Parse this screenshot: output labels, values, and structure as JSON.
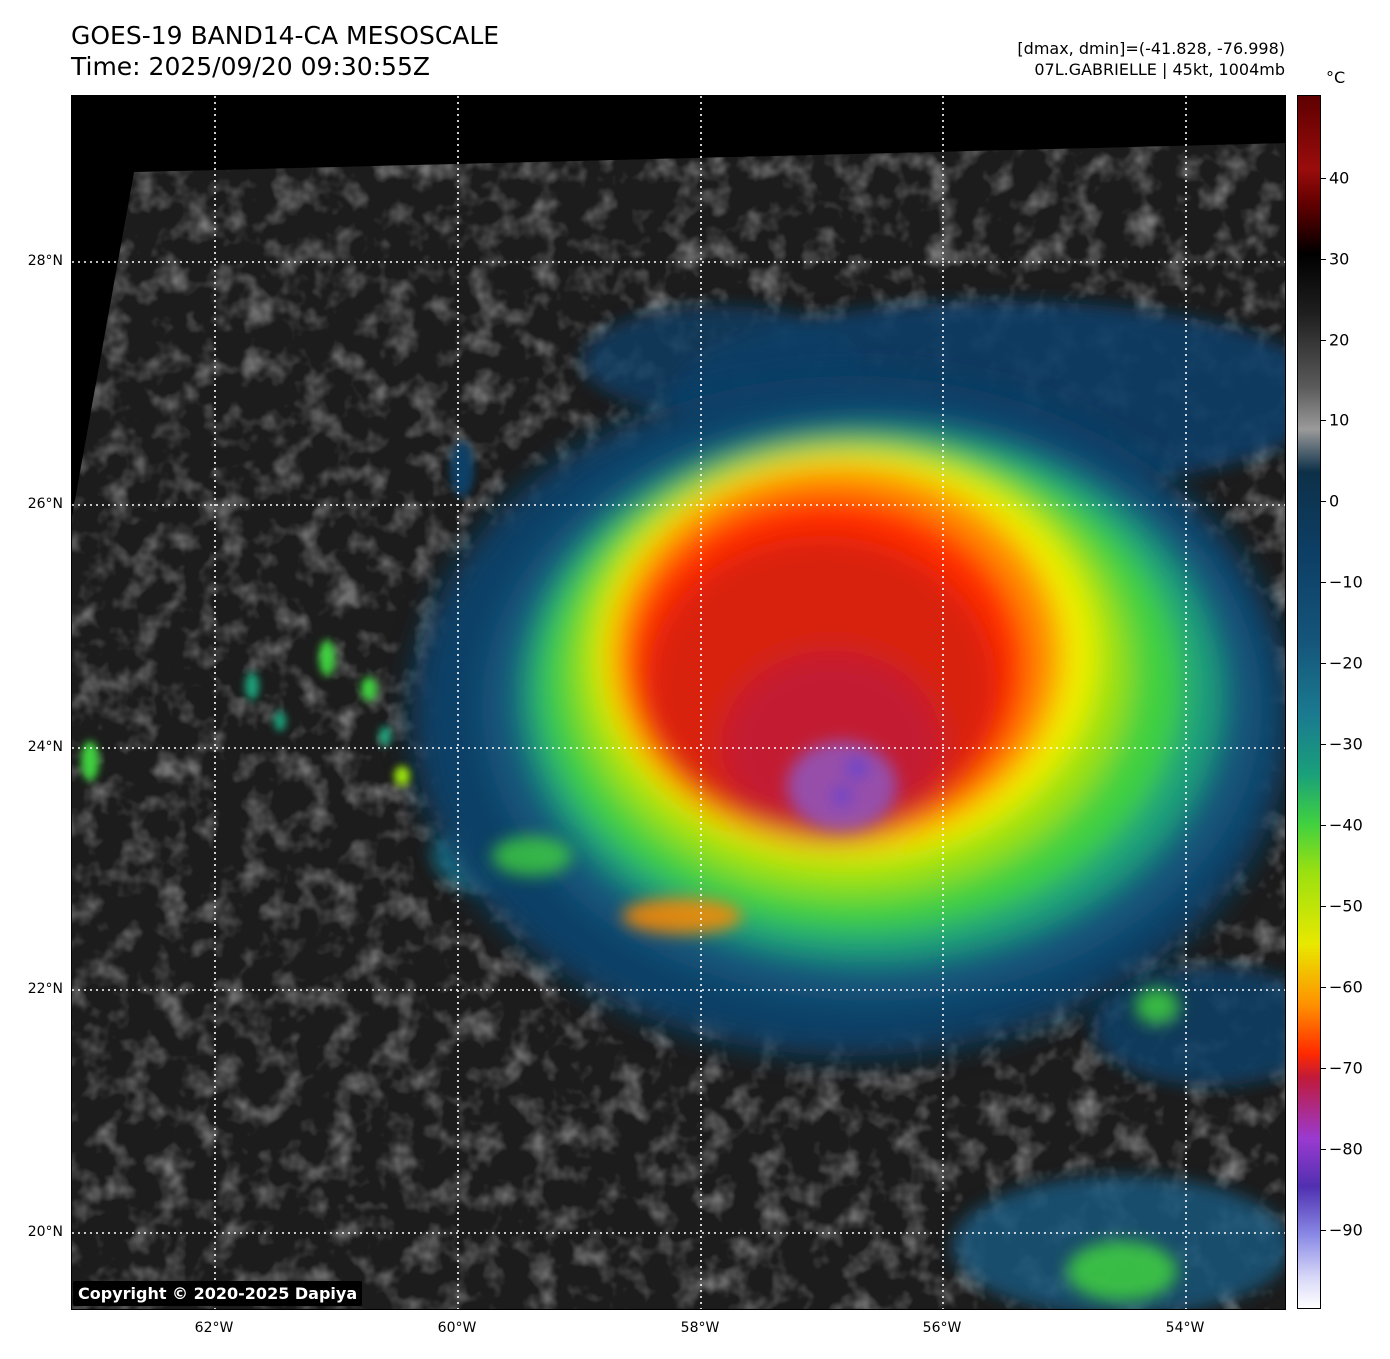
{
  "header": {
    "title": "GOES-19 BAND14-CA MESOSCALE",
    "time": "Time: 2025/09/20 09:30:55Z",
    "range_text": "[dmax, dmin]=(-41.828, -76.998)",
    "storm_text": "07L.GABRIELLE | 45kt, 1004mb"
  },
  "map": {
    "lat_labels": [
      "28°N",
      "26°N",
      "24°N",
      "22°N",
      "20°N"
    ],
    "lon_labels": [
      "62°W",
      "60°W",
      "58°W",
      "56°W",
      "54°W"
    ],
    "colors": {
      "cold_core": "#8c5ac8",
      "deep_red": "#d82010",
      "orange": "#ff8a00",
      "yellow": "#f0f000",
      "green": "#40d040",
      "teal": "#1a7a90",
      "dark_blue": "#0d3f66",
      "background": "#1a1a1a"
    }
  },
  "copyright": "Copyright © 2020-2025 Dapiya",
  "colorbar": {
    "unit": "°C",
    "ticks": [
      "40",
      "30",
      "20",
      "10",
      "0",
      "−10",
      "−20",
      "−30",
      "−40",
      "−50",
      "−60",
      "−70",
      "−80",
      "−90"
    ]
  }
}
